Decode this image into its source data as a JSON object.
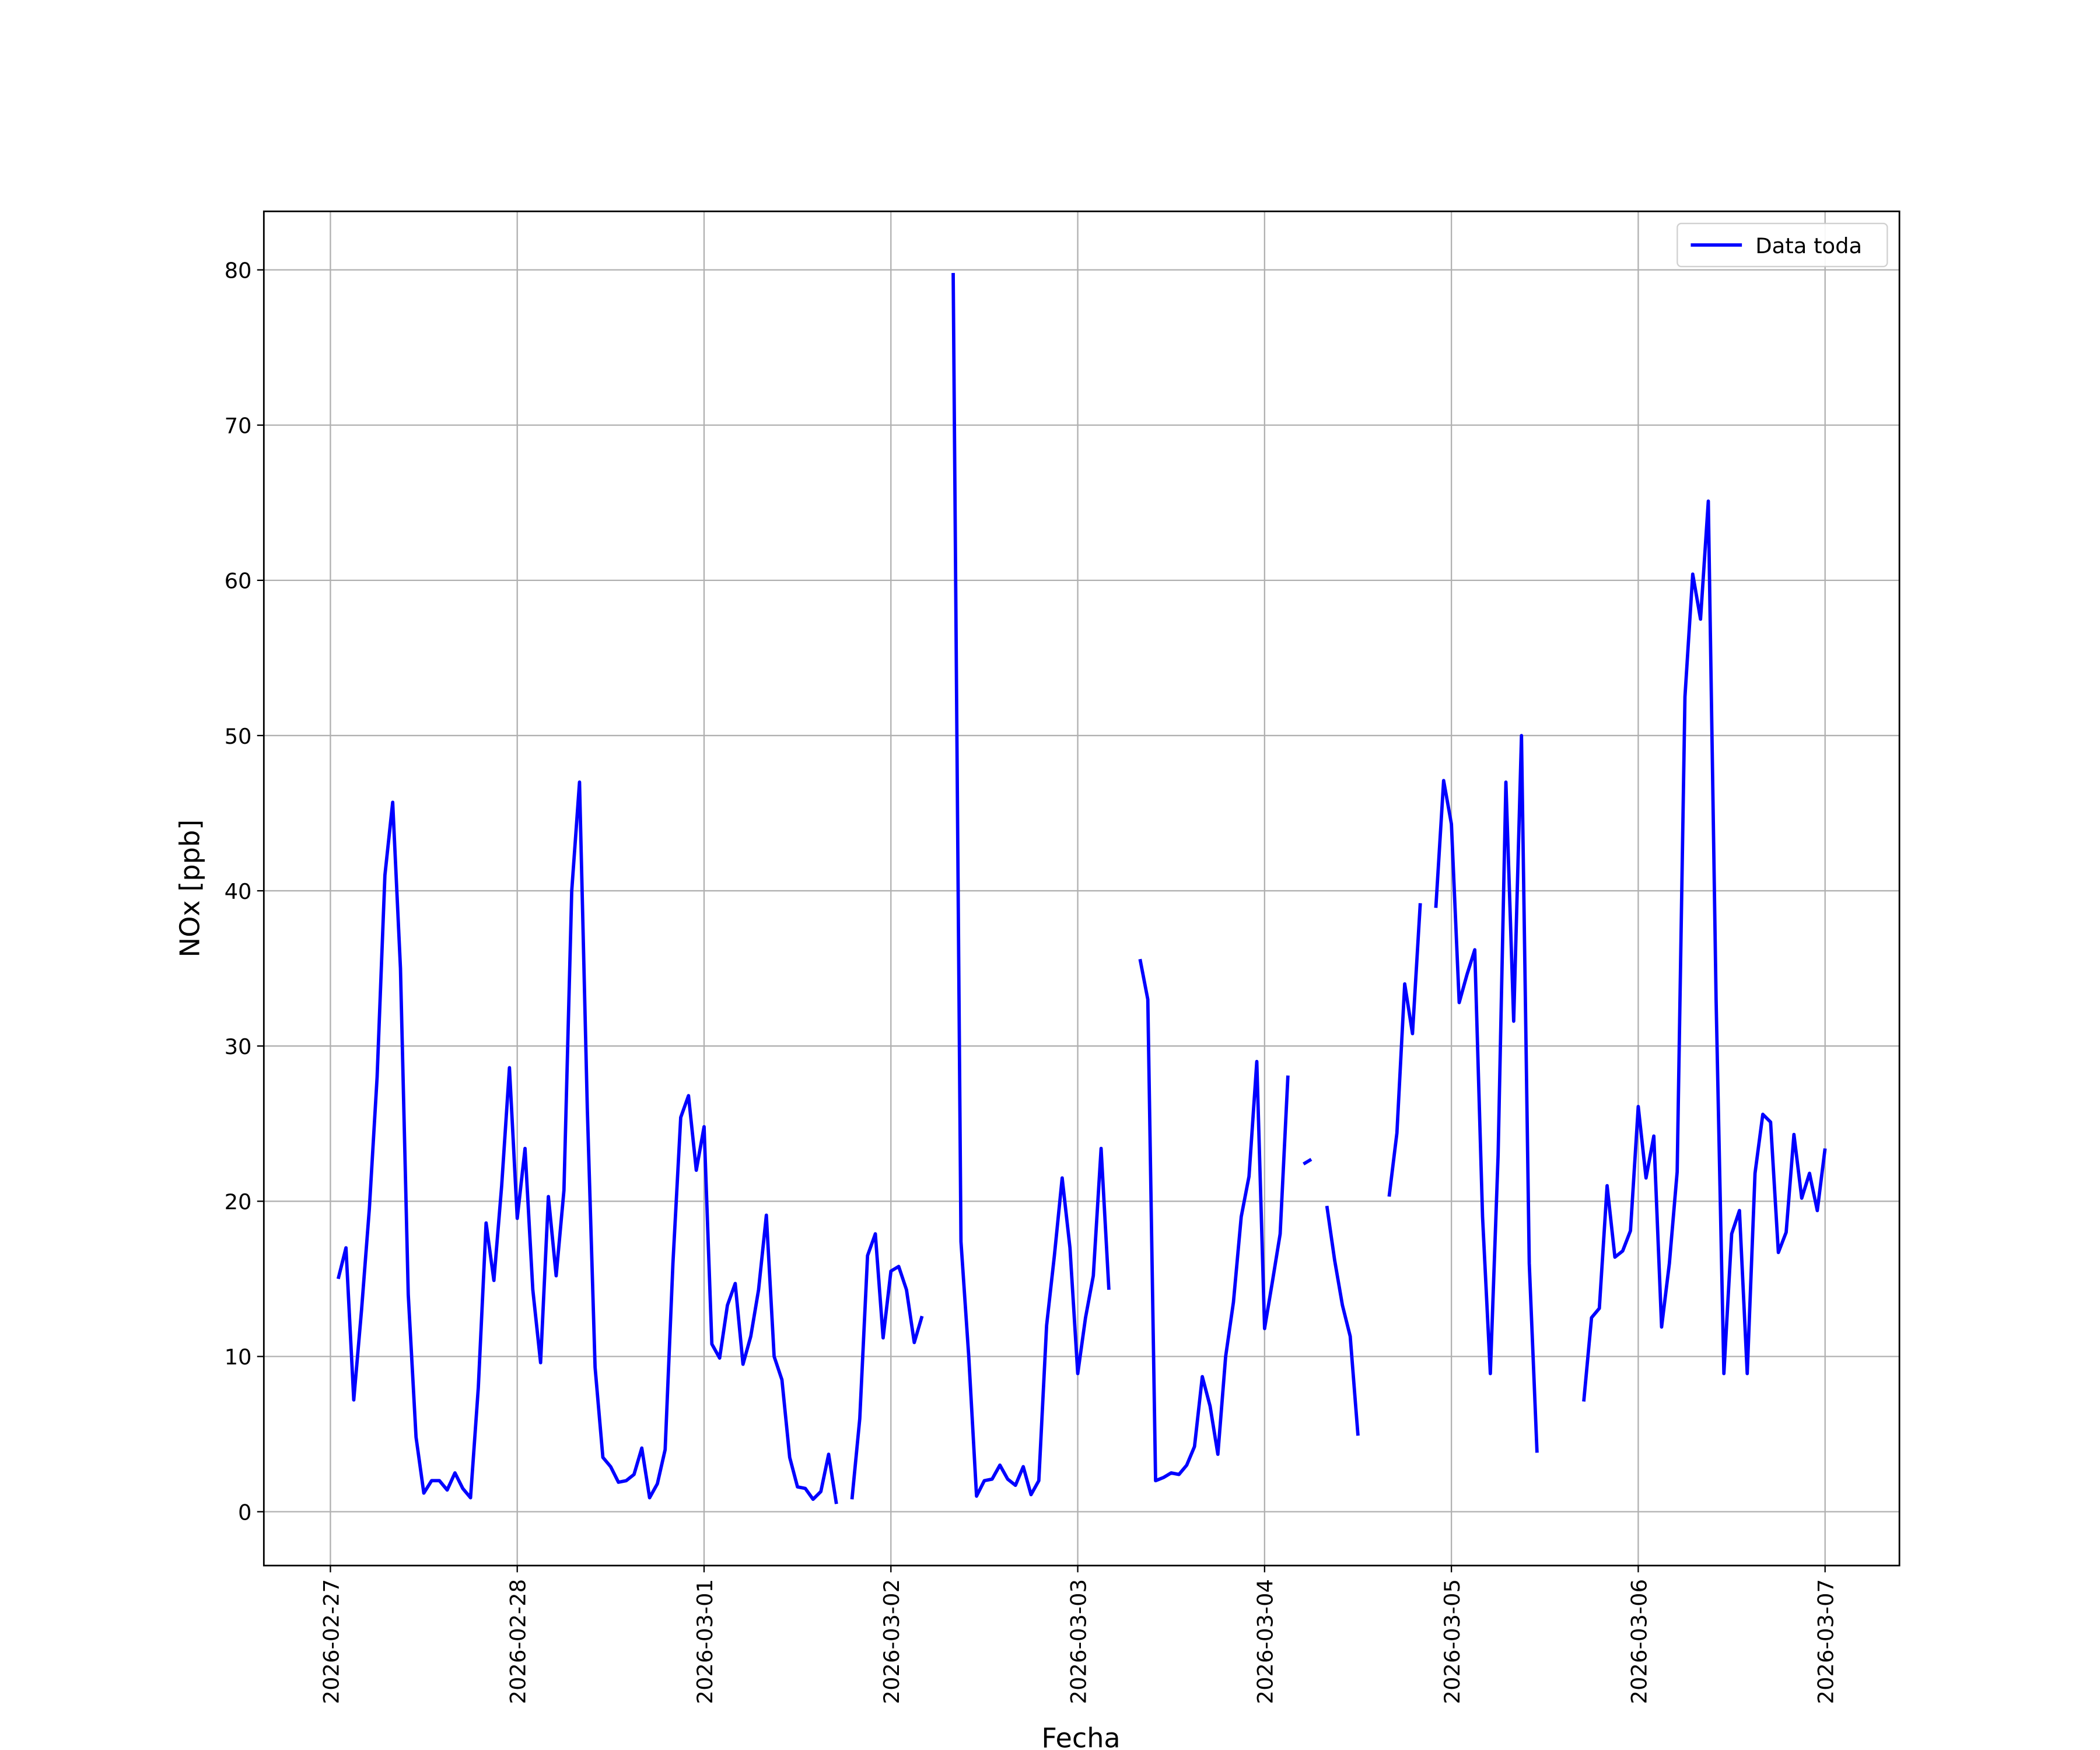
{
  "chart_data": {
    "type": "line",
    "xlabel": "Fecha",
    "ylabel": "NOx [ppb]",
    "x": [
      "2026-02-27 01:00",
      "2026-02-27 02:00",
      "2026-02-27 03:00",
      "2026-02-27 04:00",
      "2026-02-27 05:00",
      "2026-02-27 06:00",
      "2026-02-27 07:00",
      "2026-02-27 08:00",
      "2026-02-27 09:00",
      "2026-02-27 10:00",
      "2026-02-27 11:00",
      "2026-02-27 12:00",
      "2026-02-27 13:00",
      "2026-02-27 14:00",
      "2026-02-27 15:00",
      "2026-02-27 16:00",
      "2026-02-27 17:00",
      "2026-02-27 18:00",
      "2026-02-27 19:00",
      "2026-02-27 20:00",
      "2026-02-27 21:00",
      "2026-02-27 22:00",
      "2026-02-27 23:00",
      "2026-02-28 00:00",
      "2026-02-28 01:00",
      "2026-02-28 02:00",
      "2026-02-28 03:00",
      "2026-02-28 04:00",
      "2026-02-28 05:00",
      "2026-02-28 06:00",
      "2026-02-28 07:00",
      "2026-02-28 08:00",
      "2026-02-28 09:00",
      "2026-02-28 10:00",
      "2026-02-28 11:00",
      "2026-02-28 12:00",
      "2026-02-28 13:00",
      "2026-02-28 14:00",
      "2026-02-28 15:00",
      "2026-02-28 16:00",
      "2026-02-28 17:00",
      "2026-02-28 18:00",
      "2026-02-28 19:00",
      "2026-02-28 20:00",
      "2026-02-28 21:00",
      "2026-02-28 22:00",
      "2026-02-28 23:00",
      "2026-03-01 00:00",
      "2026-03-01 01:00",
      "2026-03-01 02:00",
      "2026-03-01 03:00",
      "2026-03-01 04:00",
      "2026-03-01 05:00",
      "2026-03-01 06:00",
      "2026-03-01 07:00",
      "2026-03-01 08:00",
      "2026-03-01 09:00",
      "2026-03-01 10:00",
      "2026-03-01 11:00",
      "2026-03-01 12:00",
      "2026-03-01 13:00",
      "2026-03-01 14:00",
      "2026-03-01 15:00",
      "2026-03-01 16:00",
      "2026-03-01 17:00",
      "2026-03-01 18:00",
      "2026-03-01 19:00",
      "2026-03-01 20:00",
      "2026-03-01 21:00",
      "2026-03-01 22:00",
      "2026-03-01 23:00",
      "2026-03-02 00:00",
      "2026-03-02 01:00",
      "2026-03-02 02:00",
      "2026-03-02 03:00",
      "2026-03-02 04:00",
      "2026-03-02 05:00",
      "2026-03-02 06:00",
      "2026-03-02 07:00",
      "2026-03-02 08:00",
      "2026-03-02 09:00",
      "2026-03-02 10:00",
      "2026-03-02 11:00",
      "2026-03-02 12:00",
      "2026-03-02 13:00",
      "2026-03-02 14:00",
      "2026-03-02 15:00",
      "2026-03-02 16:00",
      "2026-03-02 17:00",
      "2026-03-02 18:00",
      "2026-03-02 19:00",
      "2026-03-02 20:00",
      "2026-03-02 21:00",
      "2026-03-02 22:00",
      "2026-03-02 23:00",
      "2026-03-03 00:00",
      "2026-03-03 01:00",
      "2026-03-03 02:00",
      "2026-03-03 03:00",
      "2026-03-03 04:00",
      "2026-03-03 05:00",
      "2026-03-03 06:00",
      "2026-03-03 07:00",
      "2026-03-03 08:00",
      "2026-03-03 09:00",
      "2026-03-03 10:00",
      "2026-03-03 11:00",
      "2026-03-03 12:00",
      "2026-03-03 13:00",
      "2026-03-03 14:00",
      "2026-03-03 15:00",
      "2026-03-03 16:00",
      "2026-03-03 17:00",
      "2026-03-03 18:00",
      "2026-03-03 19:00",
      "2026-03-03 20:00",
      "2026-03-03 21:00",
      "2026-03-03 22:00",
      "2026-03-03 23:00",
      "2026-03-04 00:00",
      "2026-03-04 01:00",
      "2026-03-04 02:00",
      "2026-03-04 03:00",
      "2026-03-04 04:00",
      "2026-03-04 05:00",
      "2026-03-04 06:00",
      "2026-03-04 07:00",
      "2026-03-04 08:00",
      "2026-03-04 09:00",
      "2026-03-04 10:00",
      "2026-03-04 11:00",
      "2026-03-04 12:00",
      "2026-03-04 13:00",
      "2026-03-04 14:00",
      "2026-03-04 15:00",
      "2026-03-04 16:00",
      "2026-03-04 17:00",
      "2026-03-04 18:00",
      "2026-03-04 19:00",
      "2026-03-04 20:00",
      "2026-03-04 21:00",
      "2026-03-04 22:00",
      "2026-03-04 23:00",
      "2026-03-05 00:00",
      "2026-03-05 01:00",
      "2026-03-05 02:00",
      "2026-03-05 03:00",
      "2026-03-05 04:00",
      "2026-03-05 05:00",
      "2026-03-05 06:00",
      "2026-03-05 07:00",
      "2026-03-05 08:00",
      "2026-03-05 09:00",
      "2026-03-05 10:00",
      "2026-03-05 11:00",
      "2026-03-05 12:00",
      "2026-03-05 13:00",
      "2026-03-05 14:00",
      "2026-03-05 15:00",
      "2026-03-05 16:00",
      "2026-03-05 17:00",
      "2026-03-05 18:00",
      "2026-03-05 19:00",
      "2026-03-05 20:00",
      "2026-03-05 21:00",
      "2026-03-05 22:00",
      "2026-03-05 23:00",
      "2026-03-06 00:00",
      "2026-03-06 01:00",
      "2026-03-06 02:00",
      "2026-03-06 03:00",
      "2026-03-06 04:00",
      "2026-03-06 05:00",
      "2026-03-06 06:00",
      "2026-03-06 07:00",
      "2026-03-06 08:00",
      "2026-03-06 09:00",
      "2026-03-06 10:00",
      "2026-03-06 11:00",
      "2026-03-06 12:00",
      "2026-03-06 13:00",
      "2026-03-06 14:00",
      "2026-03-06 15:00",
      "2026-03-06 16:00",
      "2026-03-06 17:00",
      "2026-03-06 18:00",
      "2026-03-06 19:00",
      "2026-03-06 20:00",
      "2026-03-06 21:00",
      "2026-03-06 22:00",
      "2026-03-06 23:00",
      "2026-03-07 00:00"
    ],
    "series": [
      {
        "name": "Data toda",
        "color": "#0000ff",
        "values": [
          15,
          17,
          7.2,
          13,
          19.5,
          28,
          41,
          45.7,
          35,
          14,
          4.8,
          1.2,
          2,
          2,
          1.4,
          2.5,
          1.5,
          0.9,
          8,
          18.6,
          14.9,
          21,
          28.6,
          18.9,
          23.4,
          14.3,
          9.6,
          20.3,
          15.2,
          20.7,
          40,
          47,
          26,
          9.3,
          3.5,
          2.9,
          1.9,
          2,
          2.4,
          4.1,
          0.9,
          1.8,
          4,
          16,
          25.4,
          26.8,
          22,
          24.8,
          10.8,
          9.9,
          13.3,
          14.7,
          9.5,
          11.3,
          14.3,
          19.1,
          10,
          8.5,
          3.5,
          1.6,
          1.5,
          0.8,
          1.3,
          3.7,
          0.5,
          null,
          0.8,
          6,
          16.5,
          17.9,
          11.2,
          15.5,
          15.8,
          14.3,
          10.9,
          12.6,
          null,
          null,
          null,
          79.8,
          17.4,
          10,
          1,
          2,
          2.1,
          3,
          2.1,
          1.7,
          2.9,
          1.1,
          2,
          12,
          16.5,
          21.5,
          17,
          8.9,
          12.5,
          15.2,
          23.4,
          14.3,
          null,
          null,
          null,
          35.6,
          33,
          2,
          2.2,
          2.5,
          2.4,
          3,
          4.2,
          8.7,
          6.8,
          3.7,
          10,
          13.5,
          19,
          21.6,
          29,
          11.8,
          14.8,
          17.9,
          28.1,
          null,
          22.4,
          22.7,
          null,
          19.7,
          16.2,
          13.3,
          11.3,
          4.9,
          null,
          null,
          null,
          20.3,
          24.4,
          34,
          30.8,
          39.2,
          null,
          38.9,
          47.1,
          44.3,
          32.8,
          34.6,
          36.2,
          19,
          8.9,
          23,
          47,
          31.6,
          50,
          16,
          3.8,
          null,
          null,
          null,
          null,
          null,
          7.1,
          12.5,
          13.1,
          21,
          16.4,
          16.8,
          18.1,
          26.1,
          21.5,
          24.2,
          11.9,
          16,
          21.9,
          52.5,
          60.4,
          57.5,
          65.1,
          33,
          8.9,
          17.9,
          19.4,
          8.9,
          21.8,
          25.6,
          25.1,
          16.7,
          18,
          24.3,
          20.2,
          21.8,
          19.4,
          23.4
        ]
      }
    ],
    "xlim": [
      "2026-02-26 15:27",
      "2026-03-07 09:33"
    ],
    "xticks": [
      "2026-02-27",
      "2026-02-28",
      "2026-03-01",
      "2026-03-02",
      "2026-03-03",
      "2026-03-04",
      "2026-03-05",
      "2026-03-06",
      "2026-03-07"
    ],
    "ylim": [
      -3.47,
      83.77
    ],
    "yticks": [
      0,
      10,
      20,
      30,
      40,
      50,
      60,
      70,
      80
    ],
    "grid": true,
    "legend": "upper right"
  }
}
